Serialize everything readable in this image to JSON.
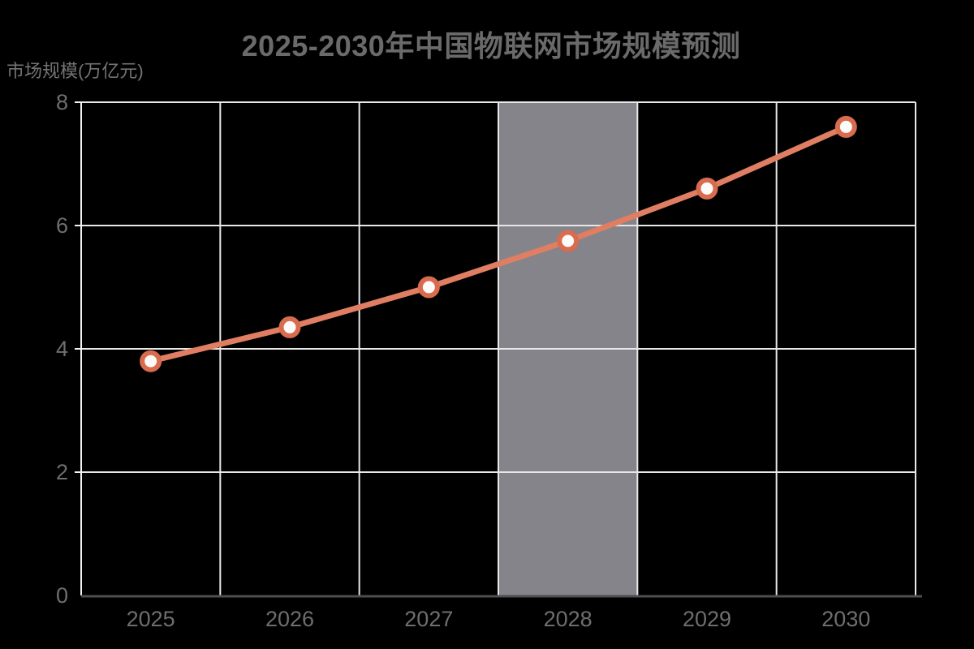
{
  "title": "2025-2030年中国物联网市场规模预测",
  "y_axis_unit": "市场规模(万亿元)",
  "chart_data": {
    "type": "line",
    "title": "2025-2030年中国物联网市场规模预测",
    "xlabel": "",
    "ylabel": "市场规模(万亿元)",
    "categories": [
      "2025",
      "2026",
      "2027",
      "2028",
      "2029",
      "2030"
    ],
    "values": [
      3.8,
      4.35,
      5.0,
      5.75,
      6.6,
      7.6
    ],
    "ylim": [
      0,
      8
    ],
    "y_ticks": [
      0,
      2,
      4,
      6,
      8
    ],
    "grid": true,
    "legend": "none",
    "highlight_band_category": "2028",
    "colors": {
      "background": "#000000",
      "title_text": "#6A6A6A",
      "axis_text": "#6E6E6E",
      "unit_text": "#737373",
      "gridline": "#E8E8EB",
      "spine": "#F2F2F4",
      "x_axis_line": "#4E4E4E",
      "band": "#84848A",
      "line": "#DF7E62",
      "marker_ring": "#D96B4E",
      "marker_fill": "#FCFBFA"
    }
  }
}
